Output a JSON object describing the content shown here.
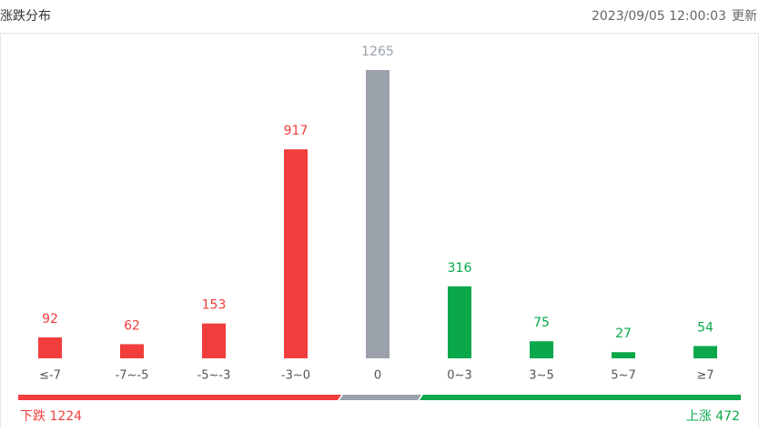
{
  "chart_data": {
    "type": "bar",
    "title": "涨跌分布",
    "timestamp": "2023/09/05 12:00:03",
    "update_label": "更新",
    "categories": [
      "≤-7",
      "-7~-5",
      "-5~-3",
      "-3~0",
      "0",
      "0~3",
      "3~5",
      "5~7",
      "≥7"
    ],
    "values": [
      92,
      62,
      153,
      917,
      1265,
      316,
      75,
      27,
      54
    ],
    "colors": [
      "#f23d3d",
      "#f23d3d",
      "#f23d3d",
      "#f23d3d",
      "#9aa1aa",
      "#0aa84a",
      "#0aa84a",
      "#0aa84a",
      "#0aa84a"
    ],
    "summary": {
      "down": "下跌 1224",
      "up": "上涨 472",
      "down_color": "#f23d3d",
      "flat_color": "#9aa1aa",
      "up_color": "#0aa84a"
    }
  }
}
